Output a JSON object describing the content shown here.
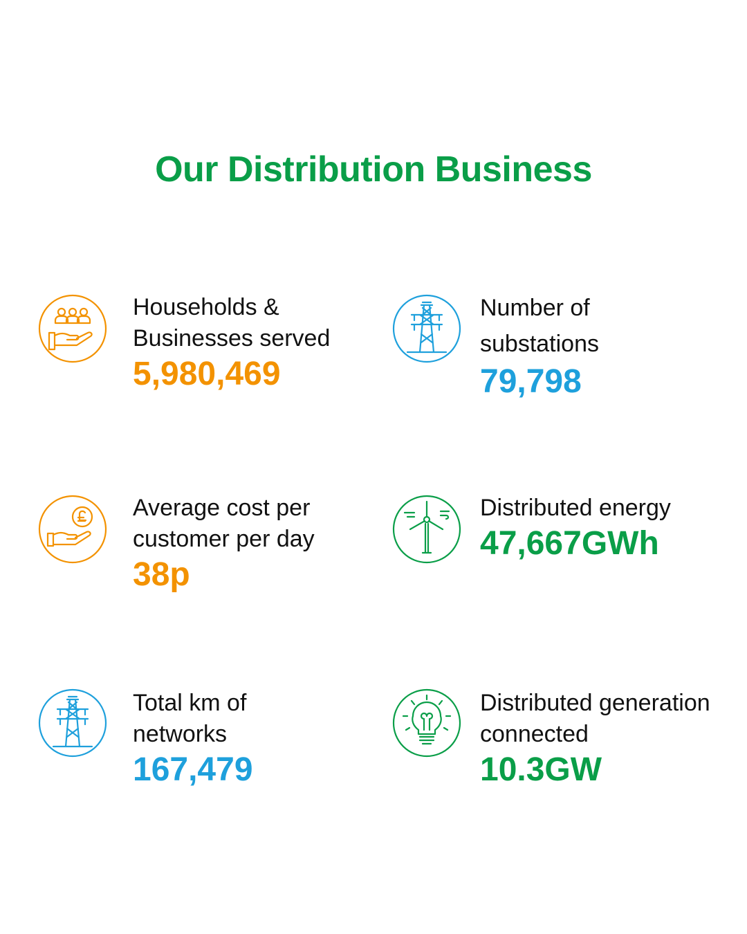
{
  "header": {
    "title": "Our Distribution Business"
  },
  "stats": [
    {
      "label": [
        "Households &",
        "Businesses served"
      ],
      "value": "5,980,469"
    },
    {
      "label": [
        "Number of",
        "substations"
      ],
      "value": "79,798"
    },
    {
      "label": [
        "Average  cost  per",
        "customer per day"
      ],
      "value": "38p"
    },
    {
      "label": [
        "Distributed energy"
      ],
      "value": "47,667GWh"
    },
    {
      "label": [
        "Total km of",
        "networks"
      ],
      "value": "167,479"
    },
    {
      "label": [
        "Distributed generation",
        "connected"
      ],
      "value": "10.3GW"
    }
  ]
}
